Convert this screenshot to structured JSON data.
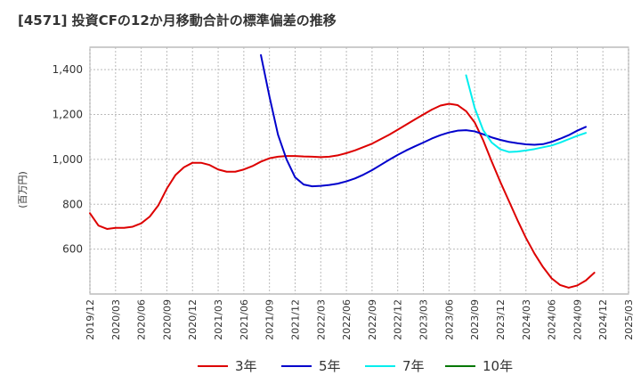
{
  "header": {
    "title": "[4571]  投資CFの12か月移動合計の標準偏差の推移"
  },
  "chart_data": {
    "type": "line",
    "title": "[4571]  投資CFの12か月移動合計の標準偏差の推移",
    "ylabel": "(百万円)",
    "xlabel": "",
    "ylim": [
      400,
      1500
    ],
    "yticks": [
      600,
      800,
      1000,
      1200,
      1400
    ],
    "ytick_labels": [
      "600",
      "800",
      "1,000",
      "1,200",
      "1,400"
    ],
    "x_start": "2019-12",
    "xtick_labels": [
      "2019/12",
      "2020/03",
      "2020/06",
      "2020/09",
      "2020/12",
      "2021/03",
      "2021/06",
      "2021/09",
      "2021/12",
      "2022/03",
      "2022/06",
      "2022/09",
      "2022/12",
      "2023/03",
      "2023/06",
      "2023/09",
      "2023/12",
      "2024/03",
      "2024/06",
      "2024/09",
      "2024/12",
      "2025/03"
    ],
    "grid": true,
    "legend_position": "bottom",
    "series": [
      {
        "name": "3年",
        "color": "#dd0000",
        "x_start": "2019-12",
        "values": [
          760,
          705,
          690,
          695,
          695,
          700,
          715,
          745,
          795,
          870,
          930,
          965,
          985,
          985,
          975,
          955,
          945,
          945,
          955,
          970,
          990,
          1005,
          1012,
          1015,
          1015,
          1013,
          1012,
          1010,
          1012,
          1018,
          1028,
          1040,
          1055,
          1070,
          1090,
          1110,
          1132,
          1155,
          1178,
          1200,
          1222,
          1240,
          1248,
          1242,
          1215,
          1165,
          1085,
          990,
          900,
          815,
          730,
          650,
          580,
          520,
          470,
          440,
          428,
          438,
          460,
          495
        ]
      },
      {
        "name": "5年",
        "color": "#0000cc",
        "x_start": "2021-08",
        "values": [
          1465,
          1280,
          1110,
          1000,
          920,
          888,
          880,
          882,
          886,
          892,
          902,
          915,
          932,
          952,
          975,
          998,
          1020,
          1040,
          1058,
          1075,
          1093,
          1108,
          1120,
          1128,
          1130,
          1125,
          1112,
          1098,
          1087,
          1078,
          1072,
          1067,
          1065,
          1068,
          1078,
          1092,
          1108,
          1128,
          1145
        ]
      },
      {
        "name": "7年",
        "color": "#00eeee",
        "x_start": "2023-08",
        "values": [
          1375,
          1230,
          1130,
          1075,
          1045,
          1033,
          1035,
          1040,
          1046,
          1054,
          1062,
          1075,
          1090,
          1105,
          1118
        ]
      },
      {
        "name": "10年",
        "color": "#007700",
        "x_start": "2024-10",
        "values": []
      }
    ]
  }
}
